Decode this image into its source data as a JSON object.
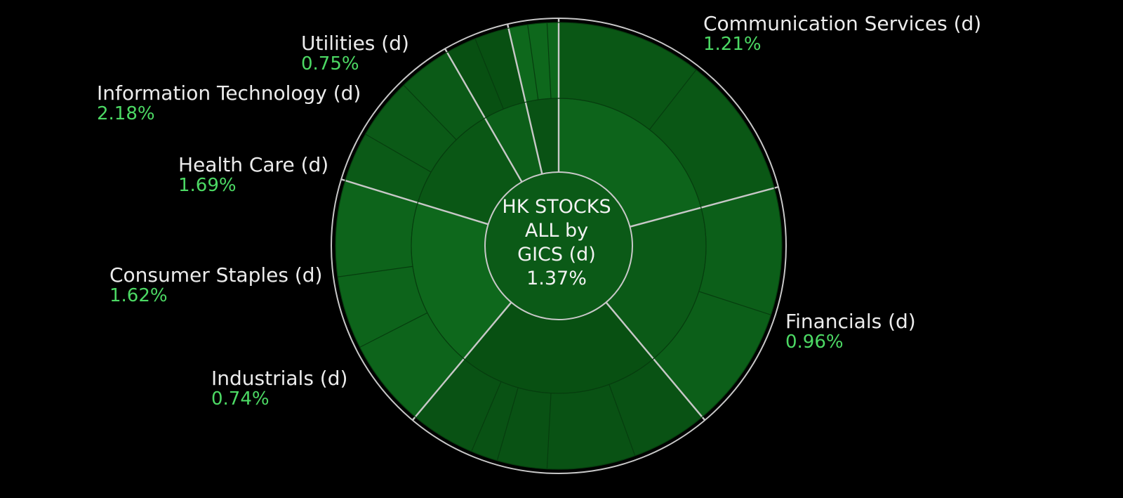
{
  "colors": {
    "background": "#000000",
    "label_text": "#ececec",
    "positive": "#4cd964",
    "ring_fill": "#0b5a17",
    "divider": "#c8c8c8"
  },
  "center": {
    "line1": "HK STOCKS",
    "line2": "ALL by",
    "line3": "GICS (d)",
    "value": "1.37%"
  },
  "chart_data": {
    "type": "sunburst",
    "title": "HK STOCKS ALL by GICS (d)",
    "total_change": "1.37%",
    "sectors": [
      {
        "name": "Communication Services (d)",
        "change": "1.21%",
        "change_value": 1.21
      },
      {
        "name": "Financials (d)",
        "change": "0.96%",
        "change_value": 0.96
      },
      {
        "name": "Industrials (d)",
        "change": "0.74%",
        "change_value": 0.74
      },
      {
        "name": "Consumer Staples (d)",
        "change": "1.62%",
        "change_value": 1.62
      },
      {
        "name": "Health Care (d)",
        "change": "1.69%",
        "change_value": 1.69
      },
      {
        "name": "Information Technology (d)",
        "change": "2.18%",
        "change_value": 2.18
      },
      {
        "name": "Utilities (d)",
        "change": "0.75%",
        "change_value": 0.75
      }
    ]
  }
}
